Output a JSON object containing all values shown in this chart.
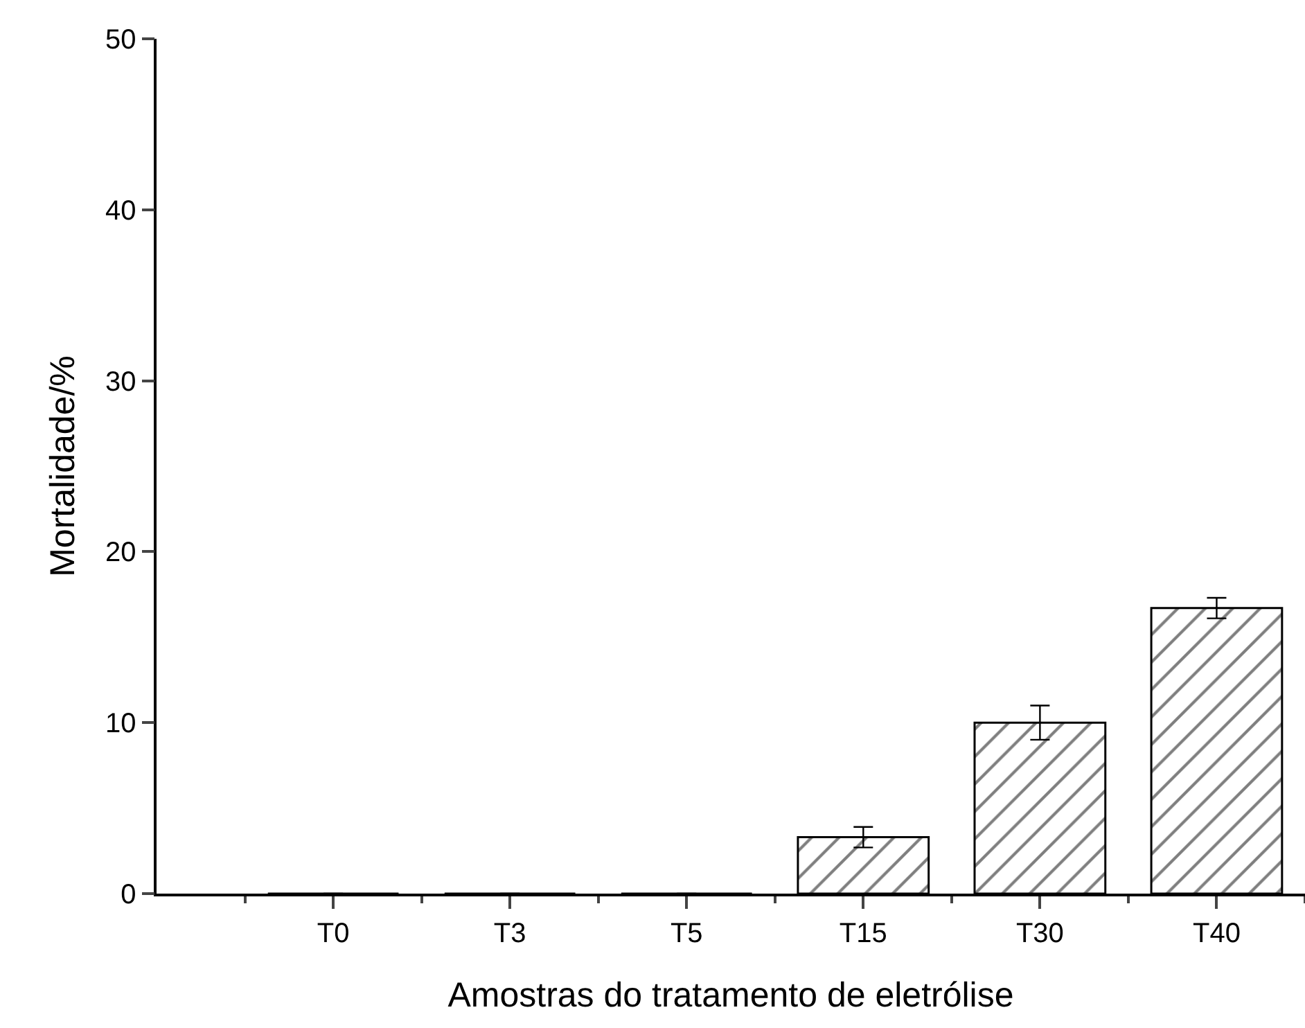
{
  "chart_data": {
    "type": "bar",
    "xlabel": "Amostras do tratamento de eletrólise",
    "ylabel": "Mortalidade/%",
    "categories": [
      "T0",
      "T3",
      "T5",
      "T15",
      "T30",
      "T40"
    ],
    "values": [
      0,
      0,
      0,
      3.3,
      10.0,
      16.7
    ],
    "errors": [
      null,
      null,
      null,
      0.6,
      1.0,
      0.6
    ],
    "color": "#000000",
    "ylim": [
      0,
      50
    ],
    "yticks": [
      0,
      10,
      20,
      30,
      40,
      50
    ]
  }
}
